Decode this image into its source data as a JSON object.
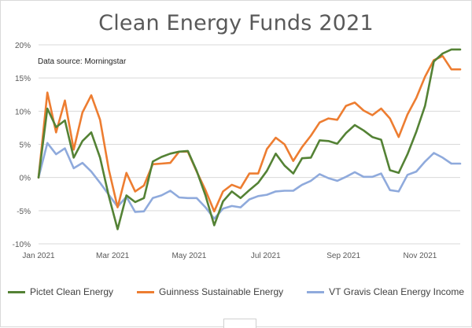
{
  "chart_data": {
    "type": "line",
    "title": "Clean Energy Funds 2021",
    "annotation": "Data source: Morningstar",
    "xlabel": "",
    "ylabel": "",
    "ylim": [
      -10,
      20
    ],
    "yticks": [
      -10,
      -5,
      0,
      5,
      10,
      15,
      20
    ],
    "ytick_labels": [
      "-10%",
      "-5%",
      "0%",
      "5%",
      "10%",
      "15%",
      "20%"
    ],
    "x_type": "weekly dates",
    "x_range": [
      "2021-01-01",
      "2021-12-03"
    ],
    "xticks": [
      "2021-01-01",
      "2021-03-01",
      "2021-05-01",
      "2021-07-01",
      "2021-09-01",
      "2021-11-01"
    ],
    "xtick_labels": [
      "Jan 2021",
      "Mar 2021",
      "May 2021",
      "Jul 2021",
      "Sep 2021",
      "Nov 2021"
    ],
    "grid": true,
    "legend_position": "bottom",
    "x": [
      "2021-01-01",
      "2021-01-08",
      "2021-01-15",
      "2021-01-22",
      "2021-01-29",
      "2021-02-05",
      "2021-02-12",
      "2021-02-19",
      "2021-02-26",
      "2021-03-05",
      "2021-03-12",
      "2021-03-19",
      "2021-03-26",
      "2021-04-02",
      "2021-04-09",
      "2021-04-16",
      "2021-04-23",
      "2021-04-30",
      "2021-05-07",
      "2021-05-14",
      "2021-05-21",
      "2021-05-28",
      "2021-06-04",
      "2021-06-11",
      "2021-06-18",
      "2021-06-25",
      "2021-07-02",
      "2021-07-09",
      "2021-07-16",
      "2021-07-23",
      "2021-07-30",
      "2021-08-06",
      "2021-08-13",
      "2021-08-20",
      "2021-08-27",
      "2021-09-03",
      "2021-09-10",
      "2021-09-17",
      "2021-09-24",
      "2021-10-01",
      "2021-10-08",
      "2021-10-15",
      "2021-10-22",
      "2021-10-29",
      "2021-11-05",
      "2021-11-12",
      "2021-11-19",
      "2021-11-26",
      "2021-12-03"
    ],
    "series": [
      {
        "name": "Pictet Clean Energy",
        "color": "#548235",
        "values": [
          0,
          10.4,
          7.6,
          8.6,
          3.0,
          5.5,
          6.8,
          3.0,
          -2.8,
          -7.8,
          -2.7,
          -3.7,
          -3.1,
          2.4,
          3.1,
          3.6,
          3.9,
          4.0,
          1.0,
          -2.7,
          -7.2,
          -3.6,
          -2.1,
          -3.1,
          -1.9,
          -0.8,
          1.0,
          3.6,
          1.8,
          0.6,
          2.9,
          3.0,
          5.6,
          5.5,
          5.1,
          6.7,
          7.9,
          7.1,
          6.1,
          5.7,
          1.1,
          0.7,
          3.5,
          6.9,
          10.8,
          17.5,
          18.7,
          19.3,
          19.3
        ]
      },
      {
        "name": "Guinness Sustainable Energy",
        "color": "#ED7D31",
        "values": [
          0,
          12.8,
          6.8,
          11.6,
          4.2,
          9.8,
          12.4,
          8.7,
          1.2,
          -4.5,
          0.7,
          -2.1,
          -1.2,
          2.0,
          2.1,
          2.2,
          3.9,
          3.9,
          0.9,
          -1.9,
          -5.1,
          -2.1,
          -1.1,
          -1.6,
          0.6,
          0.6,
          4.3,
          6.0,
          5.0,
          2.5,
          4.6,
          6.3,
          8.3,
          8.9,
          8.7,
          10.8,
          11.3,
          10.1,
          9.4,
          10.4,
          8.9,
          6.1,
          9.5,
          12.0,
          15.2,
          17.7,
          18.3,
          16.3,
          16.3
        ]
      },
      {
        "name": "VT Gravis Clean Energy Income",
        "color": "#8FAADC",
        "values": [
          0,
          5.2,
          3.5,
          4.4,
          1.4,
          2.2,
          0.9,
          -0.8,
          -2.6,
          -4.4,
          -2.9,
          -5.2,
          -5.1,
          -3.1,
          -2.7,
          -2.0,
          -3.0,
          -3.1,
          -3.1,
          -4.5,
          -6.2,
          -4.7,
          -4.3,
          -4.5,
          -3.3,
          -2.8,
          -2.6,
          -2.1,
          -2.0,
          -2.0,
          -1.1,
          -0.5,
          0.5,
          -0.1,
          -0.5,
          0.1,
          0.8,
          0.1,
          0.1,
          0.6,
          -1.9,
          -2.1,
          0.4,
          0.9,
          2.4,
          3.7,
          3.0,
          2.1,
          2.1
        ]
      }
    ]
  }
}
